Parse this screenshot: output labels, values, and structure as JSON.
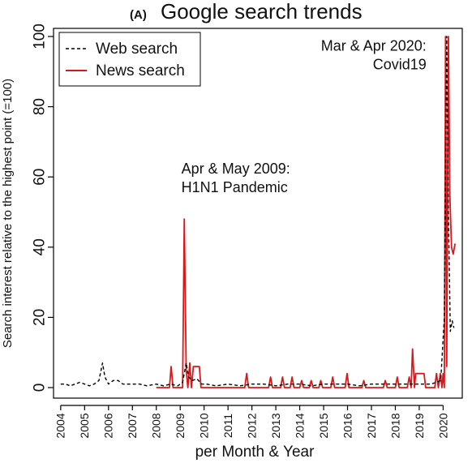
{
  "chart_data": {
    "type": "line",
    "title_prefix": "(A)",
    "title": "Google search trends",
    "xlabel": "per Month & Year",
    "ylabel": "Search interest relative to the highest point (=100)",
    "xlim": [
      2003.7,
      2020.8
    ],
    "ylim": [
      0,
      100
    ],
    "x_ticks": [
      "2004",
      "2005",
      "2006",
      "2007",
      "2008",
      "2009",
      "2010",
      "2011",
      "2012",
      "2013",
      "2014",
      "2015",
      "2016",
      "2017",
      "2018",
      "2019",
      "2020"
    ],
    "y_ticks": [
      "0",
      "20",
      "40",
      "60",
      "80",
      "100"
    ],
    "legend": {
      "position": "top-left",
      "boxed": true
    },
    "annotations": [
      {
        "lines": [
          "Apr & May 2009:",
          "H1N1 Pandemic"
        ],
        "x": 2009.05,
        "y": 61,
        "anchor": "start"
      },
      {
        "lines": [
          "Mar & Apr 2020:",
          "Covid19"
        ],
        "x": 2019.3,
        "y": 96,
        "anchor": "end"
      }
    ],
    "series": [
      {
        "name": "Web search",
        "color": "#000000",
        "dash": "4,3",
        "points": [
          [
            2004.0,
            1
          ],
          [
            2004.2,
            1
          ],
          [
            2004.4,
            0.5
          ],
          [
            2004.6,
            1
          ],
          [
            2004.8,
            1.5
          ],
          [
            2005.0,
            1
          ],
          [
            2005.2,
            0.5
          ],
          [
            2005.4,
            1
          ],
          [
            2005.6,
            2
          ],
          [
            2005.75,
            7
          ],
          [
            2005.85,
            3
          ],
          [
            2006.0,
            1
          ],
          [
            2006.2,
            2
          ],
          [
            2006.4,
            2
          ],
          [
            2006.6,
            1
          ],
          [
            2006.8,
            1
          ],
          [
            2007.0,
            1
          ],
          [
            2007.3,
            1
          ],
          [
            2007.6,
            0.5
          ],
          [
            2008.0,
            1
          ],
          [
            2008.3,
            0.5
          ],
          [
            2008.6,
            1
          ],
          [
            2008.9,
            0.5
          ],
          [
            2009.1,
            1.5
          ],
          [
            2009.25,
            7
          ],
          [
            2009.35,
            3
          ],
          [
            2009.5,
            2
          ],
          [
            2009.7,
            2.5
          ],
          [
            2009.9,
            1
          ],
          [
            2010.1,
            1
          ],
          [
            2010.5,
            0.5
          ],
          [
            2011.0,
            1
          ],
          [
            2011.5,
            0.5
          ],
          [
            2012.0,
            1
          ],
          [
            2012.5,
            1
          ],
          [
            2013.0,
            0.5
          ],
          [
            2013.5,
            1
          ],
          [
            2014.0,
            1
          ],
          [
            2014.5,
            0.5
          ],
          [
            2015.0,
            1
          ],
          [
            2015.5,
            1
          ],
          [
            2016.0,
            1
          ],
          [
            2016.5,
            0.5
          ],
          [
            2017.0,
            1
          ],
          [
            2017.5,
            1
          ],
          [
            2018.0,
            1
          ],
          [
            2018.5,
            1
          ],
          [
            2019.0,
            1
          ],
          [
            2019.5,
            1
          ],
          [
            2019.9,
            2
          ],
          [
            2020.05,
            20
          ],
          [
            2020.15,
            100
          ],
          [
            2020.22,
            50
          ],
          [
            2020.3,
            16
          ],
          [
            2020.38,
            19
          ],
          [
            2020.45,
            17
          ]
        ]
      },
      {
        "name": "News search",
        "color": "#d7191c",
        "dash": "",
        "points": [
          [
            2008.0,
            0
          ],
          [
            2008.55,
            0
          ],
          [
            2008.62,
            6
          ],
          [
            2008.7,
            0
          ],
          [
            2009.1,
            0
          ],
          [
            2009.17,
            48
          ],
          [
            2009.25,
            5
          ],
          [
            2009.32,
            0
          ],
          [
            2009.4,
            7
          ],
          [
            2009.47,
            0
          ],
          [
            2009.55,
            6
          ],
          [
            2009.8,
            6
          ],
          [
            2009.87,
            0
          ],
          [
            2011.7,
            0
          ],
          [
            2011.78,
            4
          ],
          [
            2011.86,
            0
          ],
          [
            2012.7,
            0
          ],
          [
            2012.78,
            3
          ],
          [
            2012.86,
            0
          ],
          [
            2013.2,
            0
          ],
          [
            2013.28,
            3
          ],
          [
            2013.36,
            0
          ],
          [
            2013.6,
            0
          ],
          [
            2013.68,
            3
          ],
          [
            2013.76,
            0
          ],
          [
            2014.0,
            0
          ],
          [
            2014.08,
            2
          ],
          [
            2014.16,
            0
          ],
          [
            2014.4,
            0
          ],
          [
            2014.48,
            2
          ],
          [
            2014.56,
            0
          ],
          [
            2014.8,
            0
          ],
          [
            2014.88,
            2
          ],
          [
            2014.96,
            0
          ],
          [
            2015.3,
            0
          ],
          [
            2015.38,
            3
          ],
          [
            2015.46,
            0
          ],
          [
            2015.9,
            0
          ],
          [
            2015.98,
            4
          ],
          [
            2016.06,
            0
          ],
          [
            2016.6,
            0
          ],
          [
            2016.68,
            2
          ],
          [
            2016.76,
            0
          ],
          [
            2017.5,
            0
          ],
          [
            2017.58,
            2
          ],
          [
            2017.66,
            0
          ],
          [
            2018.0,
            0
          ],
          [
            2018.08,
            3
          ],
          [
            2018.16,
            0
          ],
          [
            2018.5,
            0
          ],
          [
            2018.58,
            3
          ],
          [
            2018.66,
            0
          ],
          [
            2018.72,
            11
          ],
          [
            2018.8,
            0
          ],
          [
            2018.85,
            4
          ],
          [
            2019.2,
            4
          ],
          [
            2019.27,
            0
          ],
          [
            2019.65,
            0
          ],
          [
            2019.72,
            4
          ],
          [
            2019.8,
            0
          ],
          [
            2019.88,
            4
          ],
          [
            2019.95,
            0
          ],
          [
            2020.0,
            4
          ],
          [
            2020.05,
            0
          ],
          [
            2020.1,
            100
          ],
          [
            2020.15,
            6
          ],
          [
            2020.22,
            100
          ],
          [
            2020.28,
            55
          ],
          [
            2020.35,
            40
          ],
          [
            2020.42,
            38
          ],
          [
            2020.5,
            41
          ]
        ]
      }
    ]
  }
}
